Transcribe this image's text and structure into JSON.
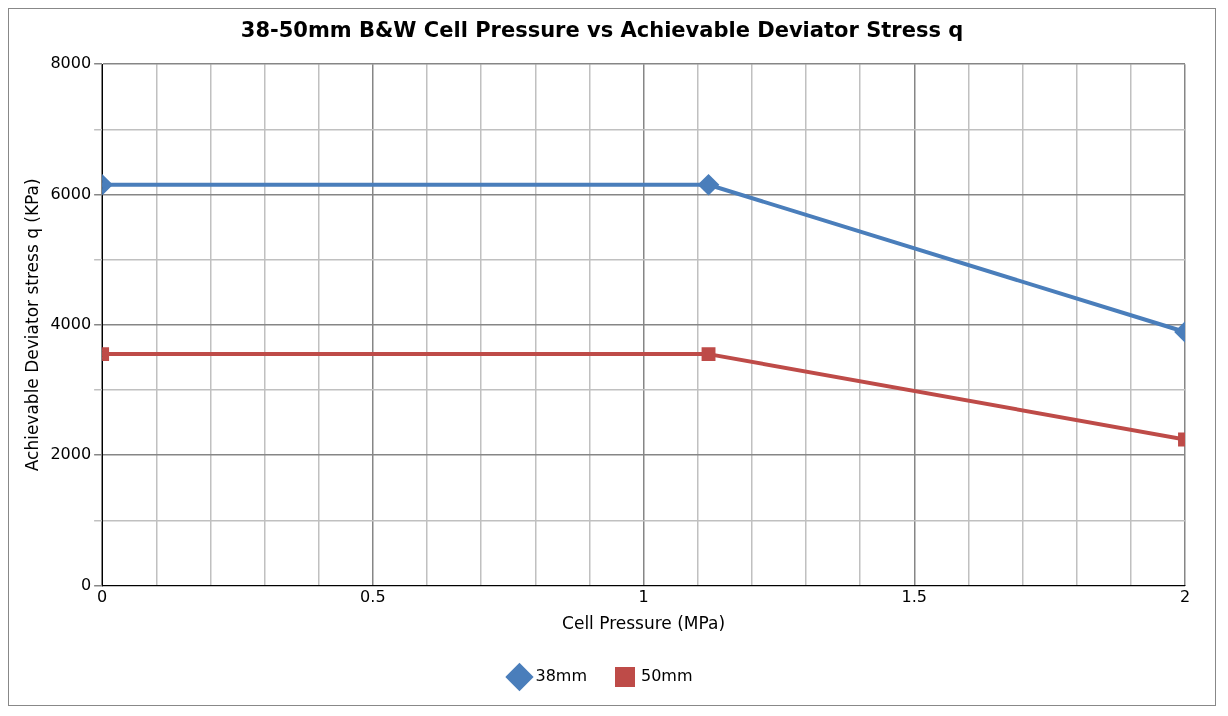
{
  "chart_data": {
    "type": "line",
    "title": "38-50mm B&W Cell Pressure vs Achievable Deviator Stress q",
    "xlabel": "Cell Pressure (MPa)",
    "ylabel": "Achievable Deviator stress q (KPa)",
    "x": [
      0,
      1.12,
      2
    ],
    "series": [
      {
        "name": "38mm",
        "color": "#4a7ebb",
        "marker": "diamond",
        "values": [
          6150,
          6150,
          3890
        ]
      },
      {
        "name": "50mm",
        "color": "#be4b48",
        "marker": "square",
        "values": [
          3550,
          3550,
          2240
        ]
      }
    ],
    "xlim": [
      0,
      2
    ],
    "xticks": [
      0,
      {
        "value": 0.1,
        "label": null
      },
      {
        "value": 0.2,
        "label": null
      },
      {
        "value": 0.3,
        "label": null
      },
      {
        "value": 0.4,
        "label": null
      },
      0.5,
      {
        "value": 0.6,
        "label": null
      },
      {
        "value": 0.7,
        "label": null
      },
      {
        "value": 0.8,
        "label": null
      },
      {
        "value": 0.9,
        "label": null
      },
      1,
      {
        "value": 1.1,
        "label": null
      },
      {
        "value": 1.2,
        "label": null
      },
      {
        "value": 1.3,
        "label": null
      },
      {
        "value": 1.4,
        "label": null
      },
      1.5,
      {
        "value": 1.6,
        "label": null
      },
      {
        "value": 1.7,
        "label": null
      },
      {
        "value": 1.8,
        "label": null
      },
      {
        "value": 1.9,
        "label": null
      },
      2
    ],
    "ylim": [
      0,
      8000
    ],
    "yticks": [
      0,
      {
        "value": 1000,
        "label": null
      },
      2000,
      {
        "value": 3000,
        "label": null
      },
      4000,
      {
        "value": 5000,
        "label": null
      },
      6000,
      {
        "value": 7000,
        "label": null
      },
      8000
    ],
    "grid": true,
    "legend": "bottom",
    "line_style": "solid"
  }
}
